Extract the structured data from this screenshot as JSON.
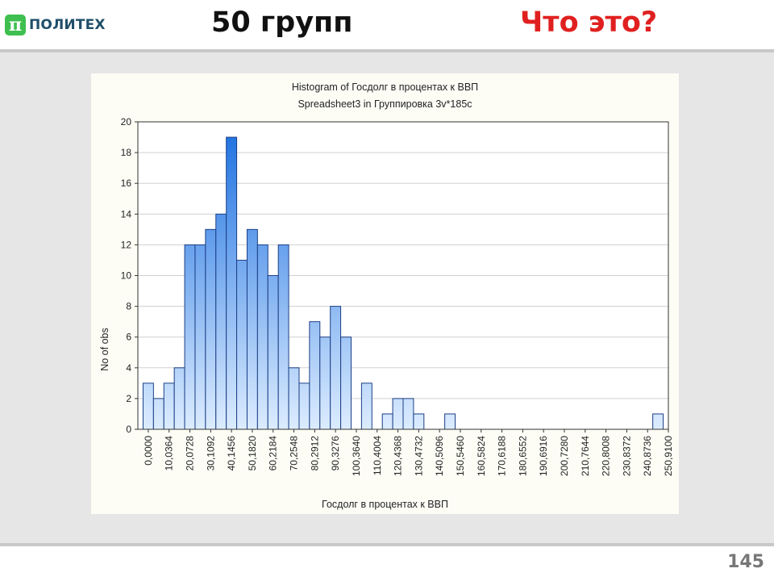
{
  "header": {
    "logo_mark": "π",
    "logo_text": "ПОЛИТЕХ",
    "title": "50 групп",
    "question": "Что это?"
  },
  "footer": {
    "page_number": "145"
  },
  "colors": {
    "title_question": "#e02020",
    "bar_top": "#1a6fe0",
    "bar_bottom": "#dcecff",
    "bar_stroke": "#1c3f86",
    "panel_bg": "#fdfdf6",
    "slide_bg": "#e6e6e6"
  },
  "chart_data": {
    "type": "bar",
    "title": "Histogram of Госдолг в процентах к ВВП",
    "subtitle": "Spreadsheet3 in Группировка 3v*185c",
    "xlabel": "Госдолг в процентах к ВВП",
    "ylabel": "No of obs",
    "ylim": [
      0,
      20
    ],
    "yticks": [
      0,
      2,
      4,
      6,
      8,
      10,
      12,
      14,
      16,
      18,
      20
    ],
    "grid": true,
    "bin_count": 50,
    "xtick_labels": [
      "0,0000",
      "10,0364",
      "20,0728",
      "30,1092",
      "40,1456",
      "50,1820",
      "60,2184",
      "70,2548",
      "80,2912",
      "90,3276",
      "100,3640",
      "110,4004",
      "120,4368",
      "130,4732",
      "140,5096",
      "150,5460",
      "160,5824",
      "170,6188",
      "180,6552",
      "190,6916",
      "200,7280",
      "210,7644",
      "220,8008",
      "230,8372",
      "240,8736",
      "250,9100"
    ],
    "values": [
      3,
      2,
      3,
      4,
      12,
      12,
      13,
      14,
      19,
      11,
      13,
      12,
      10,
      12,
      4,
      3,
      7,
      6,
      8,
      6,
      0,
      3,
      0,
      1,
      2,
      2,
      1,
      0,
      0,
      1,
      0,
      0,
      0,
      0,
      0,
      0,
      0,
      0,
      0,
      0,
      0,
      0,
      0,
      0,
      0,
      0,
      0,
      0,
      0,
      1
    ]
  }
}
